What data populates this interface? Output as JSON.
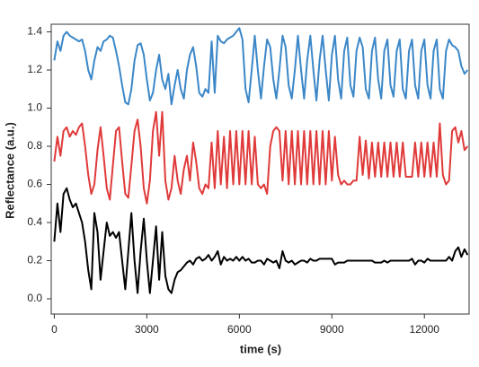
{
  "chart_data": {
    "type": "line",
    "x_label": "time (s)",
    "y_label": "Reflectance (a.u.)",
    "x": [
      0,
      100,
      200,
      300,
      400,
      500,
      600,
      700,
      800,
      900,
      1000,
      1100,
      1200,
      1300,
      1400,
      1500,
      1600,
      1700,
      1800,
      1900,
      2000,
      2100,
      2200,
      2300,
      2400,
      2500,
      2600,
      2700,
      2800,
      2900,
      3000,
      3100,
      3200,
      3300,
      3400,
      3500,
      3600,
      3700,
      3800,
      3900,
      4000,
      4100,
      4200,
      4300,
      4400,
      4500,
      4600,
      4700,
      4800,
      4900,
      5000,
      5100,
      5200,
      5300,
      5400,
      5500,
      5600,
      5700,
      5800,
      5900,
      6000,
      6100,
      6200,
      6300,
      6400,
      6500,
      6600,
      6700,
      6800,
      6900,
      7000,
      7100,
      7200,
      7300,
      7400,
      7500,
      7600,
      7700,
      7800,
      7900,
      8000,
      8100,
      8200,
      8300,
      8400,
      8500,
      8600,
      8700,
      8800,
      8900,
      9000,
      9100,
      9200,
      9300,
      9400,
      9500,
      9600,
      9700,
      9800,
      9900,
      10000,
      10100,
      10200,
      10300,
      10400,
      10500,
      10600,
      10700,
      10800,
      10900,
      11000,
      11100,
      11200,
      11300,
      11400,
      11500,
      11600,
      11700,
      11800,
      11900,
      12000,
      12100,
      12200,
      12300,
      12400,
      12500,
      12600,
      12700,
      12800,
      12900,
      13000,
      13100,
      13200,
      13300,
      13400
    ],
    "series": [
      {
        "color": "#3b87c8",
        "values": [
          1.25,
          1.35,
          1.3,
          1.38,
          1.4,
          1.38,
          1.37,
          1.36,
          1.35,
          1.36,
          1.3,
          1.2,
          1.15,
          1.25,
          1.32,
          1.3,
          1.35,
          1.36,
          1.38,
          1.37,
          1.3,
          1.22,
          1.12,
          1.03,
          1.02,
          1.1,
          1.25,
          1.33,
          1.34,
          1.28,
          1.15,
          1.04,
          1.08,
          1.2,
          1.28,
          1.15,
          1.1,
          1.18,
          1.02,
          1.12,
          1.2,
          1.1,
          1.05,
          1.2,
          1.28,
          1.32,
          1.22,
          1.08,
          1.06,
          1.1,
          1.08,
          1.35,
          1.08,
          1.38,
          1.35,
          1.34,
          1.36,
          1.37,
          1.38,
          1.4,
          1.42,
          1.36,
          1.1,
          1.03,
          1.2,
          1.38,
          1.2,
          1.05,
          1.22,
          1.36,
          1.32,
          1.15,
          1.05,
          1.2,
          1.38,
          1.32,
          1.12,
          1.05,
          1.2,
          1.38,
          1.2,
          1.05,
          1.25,
          1.38,
          1.2,
          1.04,
          1.25,
          1.38,
          1.2,
          1.04,
          1.28,
          1.38,
          1.15,
          1.05,
          1.3,
          1.37,
          1.12,
          1.06,
          1.3,
          1.37,
          1.32,
          1.1,
          1.05,
          1.3,
          1.37,
          1.15,
          1.05,
          1.3,
          1.36,
          1.12,
          1.06,
          1.3,
          1.36,
          1.1,
          1.05,
          1.3,
          1.36,
          1.12,
          1.05,
          1.3,
          1.36,
          1.12,
          1.05,
          1.3,
          1.36,
          1.1,
          1.05,
          1.3,
          1.36,
          1.33,
          1.32,
          1.3,
          1.22,
          1.18,
          1.2
        ]
      },
      {
        "color": "#e03a3a",
        "values": [
          0.72,
          0.85,
          0.75,
          0.88,
          0.9,
          0.85,
          0.88,
          0.86,
          0.9,
          0.92,
          0.8,
          0.65,
          0.55,
          0.6,
          0.78,
          0.9,
          0.75,
          0.58,
          0.52,
          0.7,
          0.88,
          0.9,
          0.72,
          0.55,
          0.53,
          0.7,
          0.88,
          0.94,
          0.8,
          0.58,
          0.5,
          0.62,
          0.88,
          0.98,
          0.75,
          0.98,
          0.62,
          0.52,
          0.58,
          0.75,
          0.62,
          0.55,
          0.68,
          0.75,
          0.62,
          0.82,
          0.72,
          0.58,
          0.55,
          0.6,
          0.58,
          0.82,
          0.58,
          0.88,
          0.6,
          0.85,
          0.58,
          0.88,
          0.6,
          0.88,
          0.6,
          0.88,
          0.6,
          0.88,
          0.6,
          0.85,
          0.6,
          0.58,
          0.6,
          0.55,
          0.8,
          0.88,
          0.9,
          0.88,
          0.62,
          0.88,
          0.6,
          0.88,
          0.6,
          0.88,
          0.6,
          0.88,
          0.6,
          0.88,
          0.6,
          0.88,
          0.6,
          0.88,
          0.6,
          0.88,
          0.62,
          0.85,
          0.65,
          0.6,
          0.62,
          0.6,
          0.6,
          0.62,
          0.62,
          0.85,
          0.65,
          0.83,
          0.63,
          0.82,
          0.64,
          0.82,
          0.64,
          0.82,
          0.64,
          0.82,
          0.64,
          0.82,
          0.64,
          0.82,
          0.64,
          0.64,
          0.64,
          0.82,
          0.64,
          0.82,
          0.64,
          0.82,
          0.64,
          0.82,
          0.64,
          0.92,
          0.65,
          0.6,
          0.62,
          0.88,
          0.9,
          0.82,
          0.88,
          0.78,
          0.8
        ]
      },
      {
        "color": "#000000",
        "values": [
          0.3,
          0.5,
          0.35,
          0.55,
          0.58,
          0.52,
          0.48,
          0.5,
          0.45,
          0.4,
          0.3,
          0.15,
          0.05,
          0.45,
          0.35,
          0.1,
          0.25,
          0.4,
          0.33,
          0.35,
          0.32,
          0.35,
          0.2,
          0.05,
          0.25,
          0.45,
          0.2,
          0.03,
          0.25,
          0.42,
          0.2,
          0.03,
          0.2,
          0.38,
          0.1,
          0.35,
          0.12,
          0.05,
          0.03,
          0.1,
          0.14,
          0.15,
          0.17,
          0.19,
          0.2,
          0.18,
          0.21,
          0.22,
          0.2,
          0.21,
          0.23,
          0.2,
          0.22,
          0.25,
          0.18,
          0.22,
          0.2,
          0.21,
          0.2,
          0.22,
          0.2,
          0.22,
          0.2,
          0.21,
          0.19,
          0.19,
          0.2,
          0.2,
          0.18,
          0.21,
          0.2,
          0.19,
          0.2,
          0.16,
          0.25,
          0.2,
          0.19,
          0.2,
          0.18,
          0.19,
          0.2,
          0.2,
          0.19,
          0.21,
          0.2,
          0.2,
          0.21,
          0.21,
          0.21,
          0.21,
          0.21,
          0.18,
          0.19,
          0.19,
          0.19,
          0.2,
          0.2,
          0.2,
          0.2,
          0.2,
          0.2,
          0.2,
          0.2,
          0.2,
          0.19,
          0.19,
          0.19,
          0.2,
          0.19,
          0.2,
          0.2,
          0.2,
          0.2,
          0.2,
          0.2,
          0.2,
          0.21,
          0.18,
          0.2,
          0.2,
          0.19,
          0.21,
          0.2,
          0.2,
          0.2,
          0.2,
          0.2,
          0.2,
          0.22,
          0.2,
          0.25,
          0.27,
          0.22,
          0.26,
          0.23
        ]
      }
    ],
    "xlim": [
      -100,
      13450
    ],
    "ylim": [
      -0.08,
      1.44
    ],
    "xticks": [
      0,
      3000,
      6000,
      9000,
      12000
    ],
    "yticks": [
      {
        "value": 0,
        "label": "0.0"
      },
      0.2,
      0.4,
      0.6,
      0.8,
      {
        "value": 1,
        "label": "1.0"
      },
      1.2,
      1.4
    ]
  }
}
